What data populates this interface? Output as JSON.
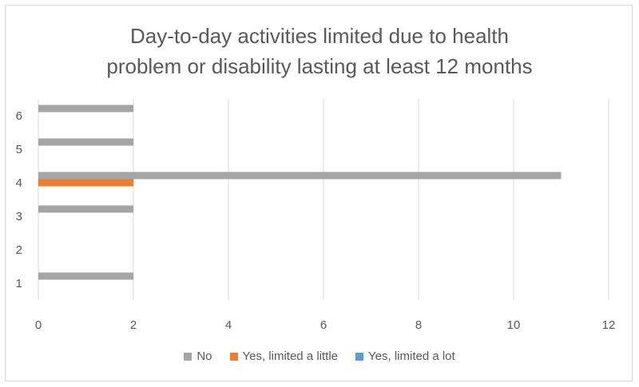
{
  "chart_data": {
    "type": "bar",
    "orientation": "horizontal",
    "title": "Day-to-day activities limited due to health problem or disability lasting at least 12 months",
    "title_lines": [
      "Day-to-day activities limited due to health",
      "problem or disability lasting at least 12 months"
    ],
    "categories": [
      "1",
      "2",
      "3",
      "4",
      "5",
      "6"
    ],
    "series": [
      {
        "name": "No",
        "color": "#a5a5a5",
        "values": [
          2,
          0,
          2,
          11,
          2,
          2
        ]
      },
      {
        "name": "Yes, limited a little",
        "color": "#ed7d31",
        "values": [
          0,
          0,
          0,
          2,
          0,
          0
        ]
      },
      {
        "name": "Yes, limited a lot",
        "color": "#5b9bd5",
        "values": [
          0,
          0,
          0,
          0,
          0,
          0
        ]
      }
    ],
    "x_ticks": [
      "0",
      "2",
      "4",
      "6",
      "8",
      "10",
      "12"
    ],
    "xlim": [
      0,
      12
    ],
    "xlabel": "",
    "ylabel": "",
    "grid": true,
    "legend_position": "bottom"
  }
}
